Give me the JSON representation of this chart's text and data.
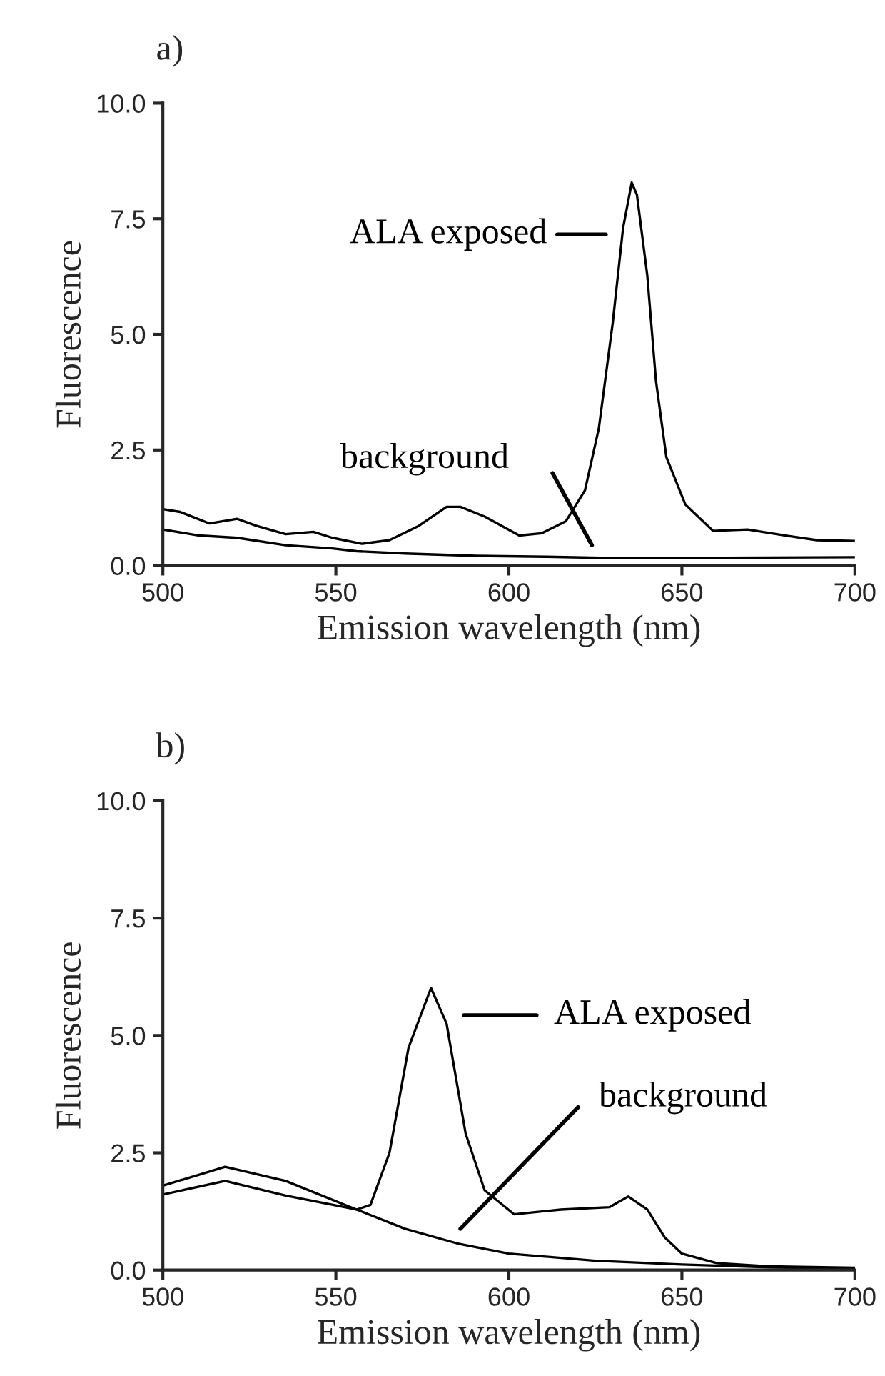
{
  "chart_data": [
    {
      "type": "line",
      "title": "a)",
      "xlabel": "Emission wavelength (nm)",
      "ylabel": "Fluorescence",
      "xlim": [
        500,
        700
      ],
      "xticks": [
        500,
        550,
        600,
        650,
        700
      ],
      "ylim": [
        0,
        10
      ],
      "yticks": [
        {
          "value": 0,
          "label": "0.0"
        },
        {
          "value": 2.5,
          "label": "2.5"
        },
        {
          "value": 5,
          "label": "5.0"
        },
        {
          "value": 7.5,
          "label": "7.5"
        },
        {
          "value": 10,
          "label": "10.0"
        }
      ],
      "grid": false,
      "legend": "top",
      "marker": "none",
      "line_style": "solid",
      "series": [
        {
          "name": "ALA exposed",
          "color": "#000000",
          "x": [
            500,
            505,
            513.5,
            521.5,
            527,
            535.5,
            543.5,
            549,
            557.5,
            565.5,
            574,
            582,
            586,
            593,
            603,
            609.5,
            616.5,
            622,
            626,
            630,
            633,
            635.5,
            637,
            640,
            642.5,
            645.5,
            651,
            659,
            669,
            680,
            689,
            700
          ],
          "values": [
            1.22,
            1.16,
            0.91,
            1.01,
            0.86,
            0.68,
            0.73,
            0.6,
            0.47,
            0.55,
            0.86,
            1.27,
            1.27,
            1.06,
            0.65,
            0.7,
            0.96,
            1.63,
            2.97,
            5.24,
            7.3,
            8.28,
            8.02,
            6.27,
            4.0,
            2.35,
            1.32,
            0.75,
            0.78,
            0.65,
            0.55,
            0.53
          ]
        },
        {
          "name": "background",
          "color": "#000000",
          "x": [
            500,
            510.5,
            521.5,
            535.5,
            549,
            556,
            570,
            590.5,
            611,
            631.5,
            700
          ],
          "values": [
            0.78,
            0.65,
            0.6,
            0.44,
            0.37,
            0.31,
            0.26,
            0.21,
            0.19,
            0.16,
            0.18
          ]
        }
      ]
    },
    {
      "type": "line",
      "title": "b)",
      "xlabel": "Emission wavelength (nm)",
      "ylabel": "Fluorescence",
      "xlim": [
        500,
        700
      ],
      "xticks": [
        500,
        550,
        600,
        650,
        700
      ],
      "ylim": [
        0,
        10
      ],
      "yticks": [
        {
          "value": 0,
          "label": "0.0"
        },
        {
          "value": 2.5,
          "label": "2.5"
        },
        {
          "value": 5,
          "label": "5.0"
        },
        {
          "value": 7.5,
          "label": "7.5"
        },
        {
          "value": 10,
          "label": "10.0"
        }
      ],
      "grid": false,
      "legend": "right",
      "marker": "none",
      "line_style": "solid",
      "series": [
        {
          "name": "ALA exposed",
          "color": "#000000",
          "x": [
            500,
            518,
            535.5,
            556,
            560,
            565.5,
            571,
            577.5,
            582,
            587.5,
            593,
            601.5,
            615,
            629,
            634.5,
            640,
            645,
            650,
            660,
            675,
            700
          ],
          "values": [
            1.8,
            2.2,
            1.9,
            1.29,
            1.39,
            2.5,
            4.74,
            6.01,
            5.25,
            2.91,
            1.7,
            1.19,
            1.29,
            1.34,
            1.57,
            1.29,
            0.7,
            0.35,
            0.15,
            0.08,
            0.05
          ]
        },
        {
          "name": "background",
          "color": "#000000",
          "x": [
            500,
            518,
            535.5,
            556,
            570,
            585,
            600,
            625,
            650,
            675,
            700
          ],
          "values": [
            1.61,
            1.9,
            1.59,
            1.29,
            0.88,
            0.57,
            0.35,
            0.2,
            0.12,
            0.06,
            0.03
          ]
        }
      ]
    }
  ]
}
